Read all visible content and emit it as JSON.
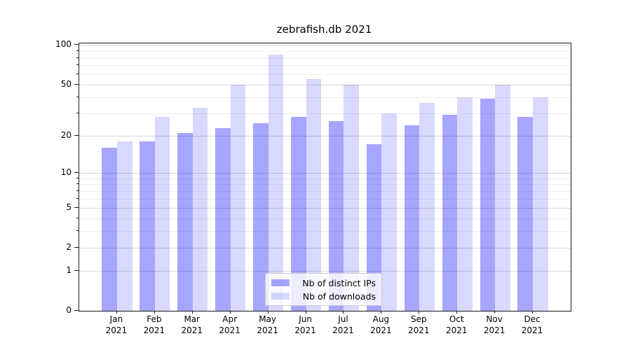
{
  "title": "zebrafish.db 2021",
  "chart_data": {
    "type": "bar",
    "title": "zebrafish.db 2021",
    "categories": [
      "Jan",
      "Feb",
      "Mar",
      "Apr",
      "May",
      "Jun",
      "Jul",
      "Aug",
      "Sep",
      "Oct",
      "Nov",
      "Dec"
    ],
    "year": "2021",
    "series": [
      {
        "name": "Nb of distinct IPs",
        "color": "rgba(0,0,255,0.35)",
        "values": [
          16,
          18,
          21,
          23,
          25,
          28,
          26,
          17,
          24,
          29,
          39,
          28
        ]
      },
      {
        "name": "Nb of downloads",
        "color": "rgba(0,0,255,0.15)",
        "values": [
          18,
          28,
          33,
          50,
          85,
          55,
          50,
          30,
          36,
          40,
          50,
          40
        ]
      }
    ],
    "xlabel": "",
    "ylabel": "",
    "yscale": "log1p",
    "ylim": [
      0,
      103
    ],
    "yticks": [
      0,
      1,
      2,
      5,
      10,
      20,
      50,
      100
    ],
    "yticks_minor": [
      3,
      4,
      6,
      7,
      8,
      9,
      30,
      40,
      60,
      70,
      80,
      90
    ],
    "grid": true,
    "legend_position": "lower center"
  },
  "colors": {
    "grid_major": "#d9d9d9",
    "grid_minor": "#efefef",
    "spine": "#1a1a1a",
    "legend_border": "#cccccc",
    "legend_background": "rgba(255,255,255,0.8)"
  }
}
